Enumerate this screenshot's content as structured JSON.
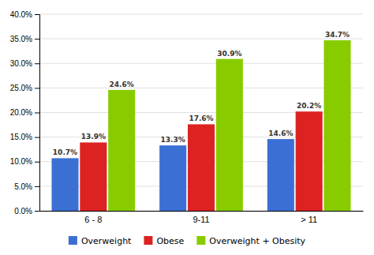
{
  "chart_data": {
    "type": "bar",
    "categories": [
      "6 - 8",
      "9-11",
      "> 11"
    ],
    "series": [
      {
        "name": "Overweight",
        "color": "#3B6FD4",
        "values": [
          10.7,
          13.3,
          14.6
        ],
        "value_labels": [
          "10.7%",
          "13.3%",
          "14.6%"
        ]
      },
      {
        "name": "Obese",
        "color": "#DD2222",
        "values": [
          13.9,
          17.6,
          20.2
        ],
        "value_labels": [
          "13.9%",
          "17.6%",
          "20.2%"
        ]
      },
      {
        "name": "Overweight + Obesity",
        "color": "#88CC00",
        "values": [
          24.6,
          30.9,
          34.7
        ],
        "value_labels": [
          "24.6%",
          "30.9%",
          "34.7%"
        ]
      }
    ],
    "ylim": [
      0,
      40
    ],
    "yticks": [
      {
        "value": 0,
        "label": "0.0%"
      },
      {
        "value": 5,
        "label": "5.0%"
      },
      {
        "value": 10,
        "label": "10.0%"
      },
      {
        "value": 15,
        "label": "15.0%"
      },
      {
        "value": 20,
        "label": "20.0%"
      },
      {
        "value": 25,
        "label": "25.0%"
      },
      {
        "value": 30,
        "label": "30.0%"
      },
      {
        "value": 35,
        "label": "35.0%"
      },
      {
        "value": 40,
        "label": "40.0%"
      }
    ],
    "grid": true,
    "data_labels": true,
    "legend": "bottom"
  }
}
